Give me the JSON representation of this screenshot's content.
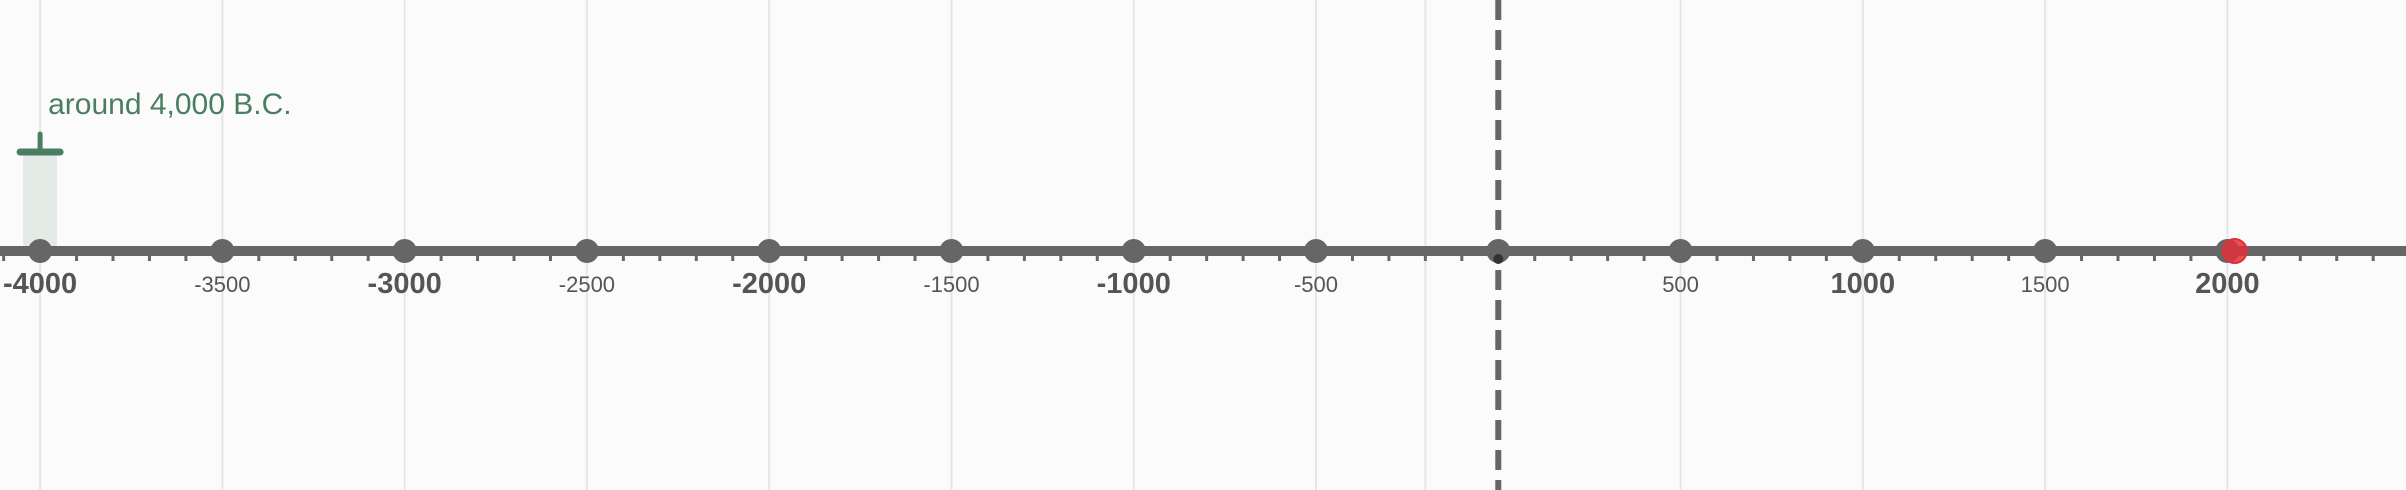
{
  "timeline": {
    "range": [
      -4110,
      2490
    ],
    "major_ticks": [
      -4000,
      -3000,
      -2000,
      -1000,
      1000,
      2000
    ],
    "minor_ticks": [
      -3500,
      -2500,
      -1500,
      -500,
      500,
      1500
    ],
    "labels": {
      "t_m4000": "-4000",
      "t_m3500": "-3500",
      "t_m3000": "-3000",
      "t_m2500": "-2500",
      "t_m2000": "-2000",
      "t_m1500": "-1500",
      "t_m1000": "-1000",
      "t_m500": "-500",
      "t_500": "500",
      "t_1000": "1000",
      "t_1500": "1500",
      "t_2000": "2000"
    },
    "small_tick_step": 100,
    "gridlines": [
      -4000,
      -3500,
      -3000,
      -2500,
      -2000,
      -1500,
      -1000,
      -500,
      -200,
      500,
      1000,
      1500,
      2000
    ],
    "dashed_marker": 0,
    "current_point": 2020
  },
  "event": {
    "label": "around 4,000 B.C.",
    "year": -4000,
    "color": "#4b7d62"
  },
  "colors": {
    "axis": "#666666",
    "grid": "#e6e6e6",
    "point": "#e0303a",
    "highlight": "#e4ebe7",
    "background": "#fbfbfb"
  }
}
